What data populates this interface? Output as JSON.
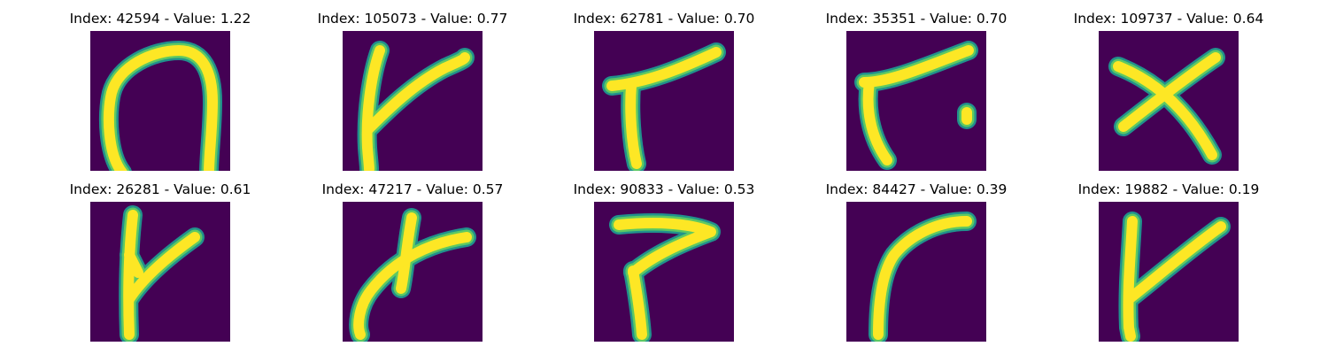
{
  "chart_data": {
    "type": "image-grid",
    "colormap": "viridis",
    "background_color": "#440154",
    "stroke_colors": {
      "core": "#fde725",
      "mid": "#5ec962",
      "edge": "#21918c"
    },
    "panels": [
      {
        "title": "Index: 42594 - Value: 1.22",
        "index": 42594,
        "value": 1.22,
        "glyph": "arch"
      },
      {
        "title": "Index: 105073 - Value: 0.77",
        "index": 105073,
        "value": 0.77,
        "glyph": "k-fork"
      },
      {
        "title": "Index: 62781 - Value: 0.70",
        "index": 62781,
        "value": 0.7,
        "glyph": "t-slant"
      },
      {
        "title": "Index: 35351 - Value: 0.70",
        "index": 35351,
        "value": 0.7,
        "glyph": "r-dot"
      },
      {
        "title": "Index: 109737 - Value: 0.64",
        "index": 109737,
        "value": 0.64,
        "glyph": "cross"
      },
      {
        "title": "Index: 26281 - Value: 0.61",
        "index": 26281,
        "value": 0.61,
        "glyph": "y-fork"
      },
      {
        "title": "Index: 47217 - Value: 0.57",
        "index": 47217,
        "value": 0.57,
        "glyph": "cross-curve"
      },
      {
        "title": "Index: 90833 - Value: 0.53",
        "index": 90833,
        "value": 0.53,
        "glyph": "seven"
      },
      {
        "title": "Index: 84427 - Value: 0.39",
        "index": 84427,
        "value": 0.39,
        "glyph": "hook"
      },
      {
        "title": "Index: 19882 - Value: 0.19",
        "index": 19882,
        "value": 0.19,
        "glyph": "k-slant"
      }
    ]
  }
}
